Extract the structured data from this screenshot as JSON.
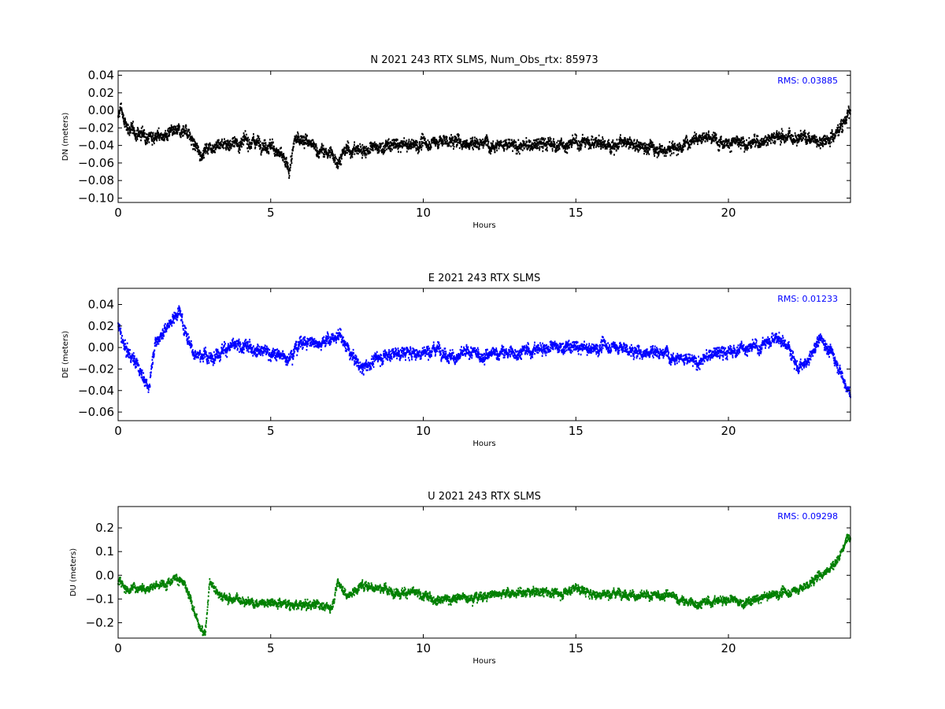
{
  "chart_data": [
    {
      "type": "scatter",
      "title": "N 2021 243 RTX  SLMS, Num_Obs_rtx: 85973",
      "xlabel": "Hours",
      "ylabel": "DN (meters)",
      "xlim": [
        0,
        24
      ],
      "ylim": [
        -0.105,
        0.045
      ],
      "xticks": [
        0,
        5,
        10,
        15,
        20
      ],
      "xtick_labels": [
        "0",
        "5",
        "10",
        "15",
        "20"
      ],
      "yticks": [
        0.04,
        0.02,
        0.0,
        -0.02,
        -0.04,
        -0.06,
        -0.08,
        -0.1
      ],
      "ytick_labels": [
        "0.04",
        "0.02",
        "0.00",
        "−0.02",
        "−0.04",
        "−0.06",
        "−0.08",
        "−0.10"
      ],
      "annotation": "RMS:  0.03885",
      "color": "#000000",
      "annotation_color": "#0000ff",
      "grid": false,
      "series": [
        {
          "x": [
            0.0,
            0.1,
            0.2,
            0.5,
            1.0,
            1.5,
            2.0,
            2.2,
            2.5,
            2.7,
            3.0,
            3.5,
            4.0,
            4.5,
            5.0,
            5.3,
            5.6,
            5.8,
            6.0,
            6.5,
            7.0,
            7.2,
            7.5,
            8.0,
            8.5,
            9.0,
            9.5,
            10.0,
            10.5,
            11.0,
            11.5,
            12.0,
            12.5,
            13.0,
            13.5,
            14.0,
            14.5,
            15.0,
            15.5,
            16.0,
            16.5,
            17.0,
            17.5,
            18.0,
            18.5,
            19.0,
            19.5,
            20.0,
            20.5,
            21.0,
            21.5,
            22.0,
            22.5,
            23.0,
            23.5,
            24.0
          ],
          "y": [
            -0.01,
            0.005,
            -0.015,
            -0.025,
            -0.028,
            -0.03,
            -0.025,
            -0.02,
            -0.04,
            -0.05,
            -0.04,
            -0.038,
            -0.037,
            -0.035,
            -0.04,
            -0.05,
            -0.07,
            -0.035,
            -0.03,
            -0.045,
            -0.05,
            -0.058,
            -0.045,
            -0.045,
            -0.043,
            -0.04,
            -0.04,
            -0.038,
            -0.035,
            -0.035,
            -0.037,
            -0.036,
            -0.038,
            -0.042,
            -0.04,
            -0.038,
            -0.04,
            -0.037,
            -0.035,
            -0.04,
            -0.038,
            -0.04,
            -0.042,
            -0.045,
            -0.04,
            -0.028,
            -0.033,
            -0.035,
            -0.04,
            -0.035,
            -0.03,
            -0.03,
            -0.03,
            -0.035,
            -0.028,
            0.0
          ],
          "spread": 0.014
        }
      ]
    },
    {
      "type": "scatter",
      "title": "E 2021 243 RTX  SLMS",
      "xlabel": "Hours",
      "ylabel": "DE (meters)",
      "xlim": [
        0,
        24
      ],
      "ylim": [
        -0.068,
        0.055
      ],
      "xticks": [
        0,
        5,
        10,
        15,
        20
      ],
      "xtick_labels": [
        "0",
        "5",
        "10",
        "15",
        "20"
      ],
      "yticks": [
        0.04,
        0.02,
        0.0,
        -0.02,
        -0.04,
        -0.06
      ],
      "ytick_labels": [
        "0.04",
        "0.02",
        "0.00",
        "−0.02",
        "−0.04",
        "−0.06"
      ],
      "annotation": "RMS:  0.01233",
      "color": "#0000ff",
      "annotation_color": "#0000ff",
      "grid": false,
      "series": [
        {
          "x": [
            0.0,
            0.2,
            0.5,
            0.8,
            1.0,
            1.2,
            1.5,
            2.0,
            2.2,
            2.5,
            3.0,
            3.5,
            4.0,
            4.5,
            5.0,
            5.5,
            6.0,
            6.5,
            7.0,
            7.3,
            7.6,
            8.0,
            8.5,
            9.0,
            9.5,
            10.0,
            10.5,
            11.0,
            11.5,
            12.0,
            12.5,
            13.0,
            13.5,
            14.0,
            14.5,
            15.0,
            15.5,
            16.0,
            16.5,
            17.0,
            17.5,
            18.0,
            18.5,
            19.0,
            19.5,
            20.0,
            20.5,
            21.0,
            21.5,
            22.0,
            22.3,
            22.6,
            23.0,
            23.5,
            24.0
          ],
          "y": [
            0.02,
            0.0,
            -0.01,
            -0.025,
            -0.04,
            0.005,
            0.015,
            0.035,
            0.015,
            -0.005,
            -0.01,
            0.0,
            0.0,
            0.0,
            -0.005,
            -0.01,
            0.005,
            0.005,
            0.008,
            0.01,
            -0.005,
            -0.02,
            -0.01,
            -0.005,
            -0.005,
            -0.005,
            0.0,
            -0.01,
            -0.005,
            -0.008,
            -0.005,
            -0.005,
            -0.003,
            0.0,
            0.0,
            0.0,
            -0.002,
            0.002,
            0.0,
            -0.005,
            -0.003,
            -0.005,
            -0.01,
            -0.015,
            -0.005,
            -0.005,
            0.0,
            0.0,
            0.01,
            0.0,
            -0.02,
            -0.015,
            0.01,
            -0.01,
            -0.045
          ],
          "spread": 0.011
        }
      ]
    },
    {
      "type": "scatter",
      "title": "U 2021 243 RTX  SLMS",
      "xlabel": "Hours",
      "ylabel": "DU (meters)",
      "xlim": [
        0,
        24
      ],
      "ylim": [
        -0.265,
        0.29
      ],
      "xticks": [
        0,
        5,
        10,
        15,
        20
      ],
      "xtick_labels": [
        "0",
        "5",
        "10",
        "15",
        "20"
      ],
      "yticks": [
        0.2,
        0.1,
        0.0,
        -0.1,
        -0.2
      ],
      "ytick_labels": [
        "0.2",
        "0.1",
        "0.0",
        "−0.1",
        "−0.2"
      ],
      "annotation": "RMS:  0.09298",
      "color": "#008000",
      "annotation_color": "#0000ff",
      "grid": false,
      "series": [
        {
          "x": [
            0.0,
            0.3,
            0.6,
            1.0,
            1.5,
            1.9,
            2.2,
            2.5,
            2.7,
            2.85,
            3.0,
            3.3,
            3.6,
            4.0,
            4.5,
            5.0,
            5.5,
            6.0,
            6.5,
            7.0,
            7.2,
            7.5,
            8.0,
            8.5,
            9.0,
            9.5,
            10.0,
            10.5,
            11.0,
            11.5,
            12.0,
            12.5,
            13.0,
            13.5,
            14.0,
            14.5,
            15.0,
            15.5,
            16.0,
            16.5,
            17.0,
            17.5,
            18.0,
            18.5,
            19.0,
            19.5,
            20.0,
            20.5,
            21.0,
            21.5,
            22.0,
            22.5,
            23.0,
            23.5,
            24.0
          ],
          "y": [
            -0.02,
            -0.06,
            -0.05,
            -0.05,
            -0.04,
            0.0,
            -0.05,
            -0.15,
            -0.23,
            -0.25,
            -0.02,
            -0.08,
            -0.1,
            -0.1,
            -0.12,
            -0.11,
            -0.12,
            -0.13,
            -0.12,
            -0.14,
            -0.02,
            -0.09,
            -0.04,
            -0.05,
            -0.07,
            -0.07,
            -0.09,
            -0.1,
            -0.1,
            -0.09,
            -0.09,
            -0.07,
            -0.08,
            -0.07,
            -0.07,
            -0.08,
            -0.05,
            -0.08,
            -0.08,
            -0.07,
            -0.09,
            -0.09,
            -0.08,
            -0.11,
            -0.12,
            -0.11,
            -0.1,
            -0.12,
            -0.1,
            -0.08,
            -0.07,
            -0.05,
            0.0,
            0.05,
            0.18
          ],
          "spread": 0.035
        }
      ]
    }
  ]
}
